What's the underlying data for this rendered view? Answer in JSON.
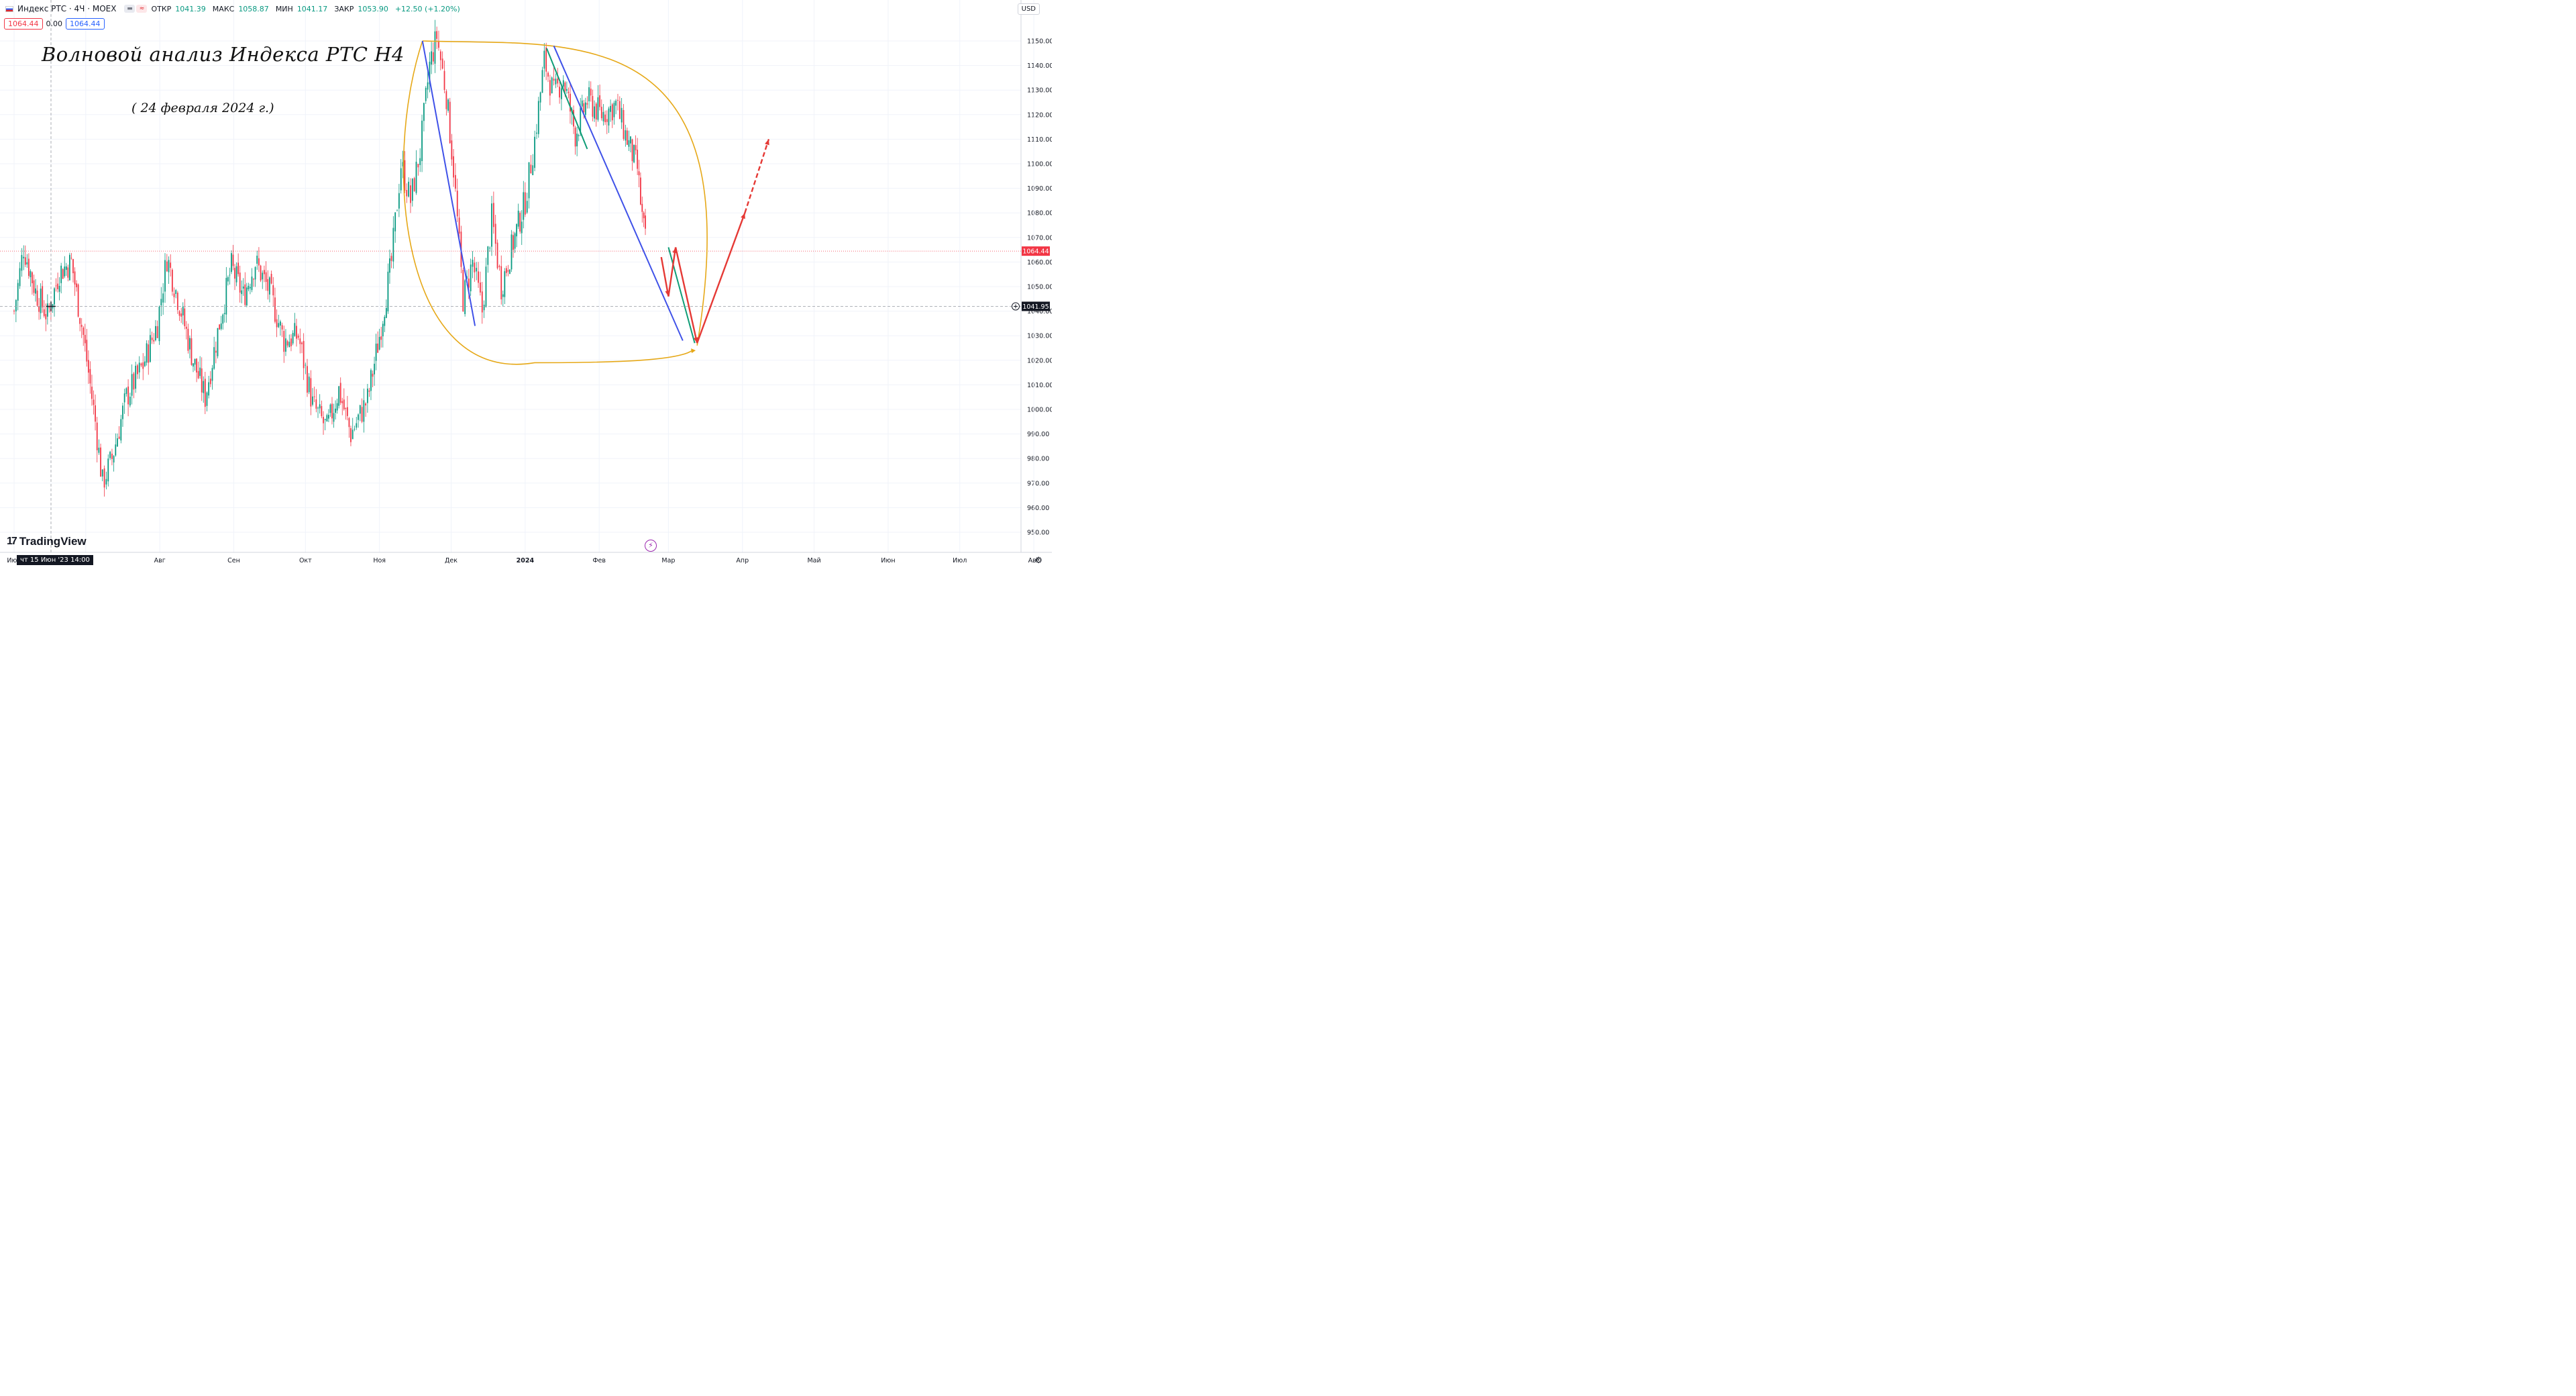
{
  "header": {
    "symbol": "Индекс РТС · 4Ч · MOEX",
    "ohlc": [
      {
        "label": "ОТКР",
        "value": "1041.39"
      },
      {
        "label": "МАКС",
        "value": "1058.87"
      },
      {
        "label": "МИН",
        "value": "1041.17"
      },
      {
        "label": "ЗАКР",
        "value": "1053.90"
      }
    ],
    "change": "+12.50 (+1.20%)",
    "sell_price": "1064.44",
    "spread": "0.00",
    "buy_price": "1064.44",
    "currency": "USD"
  },
  "annotations": {
    "title": "Волновой анализ Индекса РТС Н4",
    "date": "( 24 февраля 2024 г.)"
  },
  "brand": {
    "name": "TradingView"
  },
  "crosshair": {
    "time_label": "чт 15 Июн '23   14:00",
    "price_label": "1041.95",
    "price": 1041.95
  },
  "last_price": {
    "label": "1064.44",
    "value": 1064.44
  },
  "colors": {
    "up": "#089981",
    "down": "#f23645",
    "blue_line": "#3f51e8",
    "green_line": "#0f9d76",
    "red_arrow": "#e53935",
    "ellipse": "#e6a817"
  },
  "chart_data": {
    "type": "candlestick",
    "timeframe": "4H",
    "y_ticks": [
      950,
      960,
      970,
      980,
      990,
      1000,
      1010,
      1020,
      1030,
      1040,
      1050,
      1060,
      1070,
      1080,
      1090,
      1100,
      1110,
      1120,
      1130,
      1140,
      1150
    ],
    "y_tick_labels": [
      "950.00",
      "960.00",
      "970.00",
      "980.00",
      "990.00",
      "1000.00",
      "1010.00",
      "1020.00",
      "1030.00",
      "1040.00",
      "1050.00",
      "1060.00",
      "1070.00",
      "1080.00",
      "1090.00",
      "1100.00",
      "1110.00",
      "1120.00",
      "1130.00",
      "1140.00",
      "1150.00"
    ],
    "ylim": [
      946,
      1158
    ],
    "x_ticks": [
      {
        "label": "Июн",
        "date": "2023-06-01"
      },
      {
        "label": "Июл",
        "date": "2023-07-01"
      },
      {
        "label": "Авг",
        "date": "2023-08-01"
      },
      {
        "label": "Сен",
        "date": "2023-09-01"
      },
      {
        "label": "Окт",
        "date": "2023-10-01"
      },
      {
        "label": "Ноя",
        "date": "2023-11-01"
      },
      {
        "label": "Дек",
        "date": "2023-12-01"
      },
      {
        "label": "2024",
        "date": "2024-01-01"
      },
      {
        "label": "Фев",
        "date": "2024-02-01"
      },
      {
        "label": "Мар",
        "date": "2024-03-01"
      },
      {
        "label": "Апр",
        "date": "2024-04-01"
      },
      {
        "label": "Май",
        "date": "2024-05-01"
      },
      {
        "label": "Июн",
        "date": "2024-06-01"
      },
      {
        "label": "Июл",
        "date": "2024-07-01"
      },
      {
        "label": "Авг",
        "date": "2024-08-01"
      }
    ],
    "close_series": [
      {
        "date": "2023-06-01",
        "close": 1040
      },
      {
        "date": "2023-06-05",
        "close": 1066
      },
      {
        "date": "2023-06-10",
        "close": 1048
      },
      {
        "date": "2023-06-15",
        "close": 1038
      },
      {
        "date": "2023-06-20",
        "close": 1056
      },
      {
        "date": "2023-06-25",
        "close": 1060
      },
      {
        "date": "2023-06-30",
        "close": 1030
      },
      {
        "date": "2023-07-05",
        "close": 995
      },
      {
        "date": "2023-07-08",
        "close": 970
      },
      {
        "date": "2023-07-12",
        "close": 980
      },
      {
        "date": "2023-07-18",
        "close": 1005
      },
      {
        "date": "2023-07-25",
        "close": 1018
      },
      {
        "date": "2023-07-31",
        "close": 1035
      },
      {
        "date": "2023-08-04",
        "close": 1062
      },
      {
        "date": "2023-08-10",
        "close": 1040
      },
      {
        "date": "2023-08-15",
        "close": 1020
      },
      {
        "date": "2023-08-20",
        "close": 1005
      },
      {
        "date": "2023-08-26",
        "close": 1035
      },
      {
        "date": "2023-08-31",
        "close": 1058
      },
      {
        "date": "2023-09-05",
        "close": 1046
      },
      {
        "date": "2023-09-10",
        "close": 1060
      },
      {
        "date": "2023-09-16",
        "close": 1048
      },
      {
        "date": "2023-09-22",
        "close": 1028
      },
      {
        "date": "2023-09-28",
        "close": 1030
      },
      {
        "date": "2023-10-04",
        "close": 1002
      },
      {
        "date": "2023-10-10",
        "close": 992
      },
      {
        "date": "2023-10-15",
        "close": 1008
      },
      {
        "date": "2023-10-20",
        "close": 990
      },
      {
        "date": "2023-10-27",
        "close": 1004
      },
      {
        "date": "2023-11-01",
        "close": 1030
      },
      {
        "date": "2023-11-06",
        "close": 1060
      },
      {
        "date": "2023-11-10",
        "close": 1100
      },
      {
        "date": "2023-11-14",
        "close": 1085
      },
      {
        "date": "2023-11-18",
        "close": 1105
      },
      {
        "date": "2023-11-22",
        "close": 1140
      },
      {
        "date": "2023-11-25",
        "close": 1152
      },
      {
        "date": "2023-11-29",
        "close": 1128
      },
      {
        "date": "2023-12-02",
        "close": 1098
      },
      {
        "date": "2023-12-06",
        "close": 1045
      },
      {
        "date": "2023-12-10",
        "close": 1060
      },
      {
        "date": "2023-12-14",
        "close": 1040
      },
      {
        "date": "2023-12-18",
        "close": 1078
      },
      {
        "date": "2023-12-22",
        "close": 1050
      },
      {
        "date": "2023-12-27",
        "close": 1068
      },
      {
        "date": "2024-01-01",
        "close": 1085
      },
      {
        "date": "2024-01-05",
        "close": 1110
      },
      {
        "date": "2024-01-09",
        "close": 1142
      },
      {
        "date": "2024-01-13",
        "close": 1128
      },
      {
        "date": "2024-01-17",
        "close": 1135
      },
      {
        "date": "2024-01-22",
        "close": 1112
      },
      {
        "date": "2024-01-27",
        "close": 1126
      },
      {
        "date": "2024-02-02",
        "close": 1120
      },
      {
        "date": "2024-02-08",
        "close": 1124
      },
      {
        "date": "2024-02-12",
        "close": 1112
      },
      {
        "date": "2024-02-17",
        "close": 1098
      },
      {
        "date": "2024-02-19",
        "close": 1078
      },
      {
        "date": "2024-02-21",
        "close": 1064
      }
    ],
    "wave_lines": [
      {
        "color": "blue",
        "from": {
          "date": "2023-11-19",
          "price": 1150
        },
        "to": {
          "date": "2023-12-11",
          "price": 1034
        }
      },
      {
        "color": "blue",
        "from": {
          "date": "2024-01-13",
          "price": 1148
        },
        "to": {
          "date": "2024-03-07",
          "price": 1028
        }
      },
      {
        "color": "green",
        "from": {
          "date": "2024-01-10",
          "price": 1147
        },
        "to": {
          "date": "2024-01-27",
          "price": 1106
        }
      },
      {
        "color": "green",
        "from": {
          "date": "2024-03-01",
          "price": 1066
        },
        "to": {
          "date": "2024-03-12",
          "price": 1027
        }
      }
    ],
    "forecast_arrows": [
      {
        "style": "solid",
        "from": {
          "date": "2024-02-27",
          "price": 1062
        },
        "to": {
          "date": "2024-03-01",
          "price": 1046
        }
      },
      {
        "style": "solid",
        "from": {
          "date": "2024-03-01",
          "price": 1046
        },
        "to": {
          "date": "2024-03-04",
          "price": 1066
        }
      },
      {
        "style": "solid",
        "from": {
          "date": "2024-03-04",
          "price": 1066
        },
        "to": {
          "date": "2024-03-13",
          "price": 1027
        }
      },
      {
        "style": "solid",
        "from": {
          "date": "2024-03-13",
          "price": 1027
        },
        "to": {
          "date": "2024-04-02",
          "price": 1080
        }
      },
      {
        "style": "dashed",
        "from": {
          "date": "2024-04-02",
          "price": 1080
        },
        "to": {
          "date": "2024-04-12",
          "price": 1110
        }
      }
    ]
  }
}
